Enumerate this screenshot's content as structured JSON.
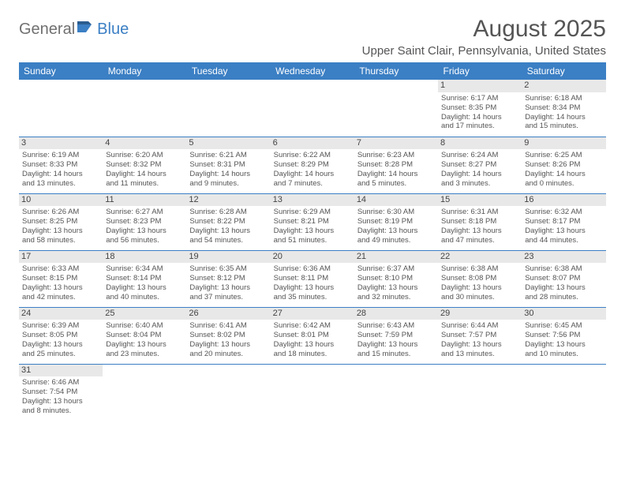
{
  "logo": {
    "part1": "General",
    "part2": "Blue"
  },
  "title": "August 2025",
  "location": "Upper Saint Clair, Pennsylvania, United States",
  "colors": {
    "header_bg": "#3b7fc4",
    "header_fg": "#ffffff",
    "daynum_bg": "#e8e8e8",
    "text": "#555555",
    "logo_gray": "#707070",
    "logo_blue": "#3b7fc4",
    "border": "#3b7fc4",
    "page_bg": "#ffffff"
  },
  "day_headers": [
    "Sunday",
    "Monday",
    "Tuesday",
    "Wednesday",
    "Thursday",
    "Friday",
    "Saturday"
  ],
  "weeks": [
    [
      null,
      null,
      null,
      null,
      null,
      {
        "n": "1",
        "sr": "Sunrise: 6:17 AM",
        "ss": "Sunset: 8:35 PM",
        "d1": "Daylight: 14 hours",
        "d2": "and 17 minutes."
      },
      {
        "n": "2",
        "sr": "Sunrise: 6:18 AM",
        "ss": "Sunset: 8:34 PM",
        "d1": "Daylight: 14 hours",
        "d2": "and 15 minutes."
      }
    ],
    [
      {
        "n": "3",
        "sr": "Sunrise: 6:19 AM",
        "ss": "Sunset: 8:33 PM",
        "d1": "Daylight: 14 hours",
        "d2": "and 13 minutes."
      },
      {
        "n": "4",
        "sr": "Sunrise: 6:20 AM",
        "ss": "Sunset: 8:32 PM",
        "d1": "Daylight: 14 hours",
        "d2": "and 11 minutes."
      },
      {
        "n": "5",
        "sr": "Sunrise: 6:21 AM",
        "ss": "Sunset: 8:31 PM",
        "d1": "Daylight: 14 hours",
        "d2": "and 9 minutes."
      },
      {
        "n": "6",
        "sr": "Sunrise: 6:22 AM",
        "ss": "Sunset: 8:29 PM",
        "d1": "Daylight: 14 hours",
        "d2": "and 7 minutes."
      },
      {
        "n": "7",
        "sr": "Sunrise: 6:23 AM",
        "ss": "Sunset: 8:28 PM",
        "d1": "Daylight: 14 hours",
        "d2": "and 5 minutes."
      },
      {
        "n": "8",
        "sr": "Sunrise: 6:24 AM",
        "ss": "Sunset: 8:27 PM",
        "d1": "Daylight: 14 hours",
        "d2": "and 3 minutes."
      },
      {
        "n": "9",
        "sr": "Sunrise: 6:25 AM",
        "ss": "Sunset: 8:26 PM",
        "d1": "Daylight: 14 hours",
        "d2": "and 0 minutes."
      }
    ],
    [
      {
        "n": "10",
        "sr": "Sunrise: 6:26 AM",
        "ss": "Sunset: 8:25 PM",
        "d1": "Daylight: 13 hours",
        "d2": "and 58 minutes."
      },
      {
        "n": "11",
        "sr": "Sunrise: 6:27 AM",
        "ss": "Sunset: 8:23 PM",
        "d1": "Daylight: 13 hours",
        "d2": "and 56 minutes."
      },
      {
        "n": "12",
        "sr": "Sunrise: 6:28 AM",
        "ss": "Sunset: 8:22 PM",
        "d1": "Daylight: 13 hours",
        "d2": "and 54 minutes."
      },
      {
        "n": "13",
        "sr": "Sunrise: 6:29 AM",
        "ss": "Sunset: 8:21 PM",
        "d1": "Daylight: 13 hours",
        "d2": "and 51 minutes."
      },
      {
        "n": "14",
        "sr": "Sunrise: 6:30 AM",
        "ss": "Sunset: 8:19 PM",
        "d1": "Daylight: 13 hours",
        "d2": "and 49 minutes."
      },
      {
        "n": "15",
        "sr": "Sunrise: 6:31 AM",
        "ss": "Sunset: 8:18 PM",
        "d1": "Daylight: 13 hours",
        "d2": "and 47 minutes."
      },
      {
        "n": "16",
        "sr": "Sunrise: 6:32 AM",
        "ss": "Sunset: 8:17 PM",
        "d1": "Daylight: 13 hours",
        "d2": "and 44 minutes."
      }
    ],
    [
      {
        "n": "17",
        "sr": "Sunrise: 6:33 AM",
        "ss": "Sunset: 8:15 PM",
        "d1": "Daylight: 13 hours",
        "d2": "and 42 minutes."
      },
      {
        "n": "18",
        "sr": "Sunrise: 6:34 AM",
        "ss": "Sunset: 8:14 PM",
        "d1": "Daylight: 13 hours",
        "d2": "and 40 minutes."
      },
      {
        "n": "19",
        "sr": "Sunrise: 6:35 AM",
        "ss": "Sunset: 8:12 PM",
        "d1": "Daylight: 13 hours",
        "d2": "and 37 minutes."
      },
      {
        "n": "20",
        "sr": "Sunrise: 6:36 AM",
        "ss": "Sunset: 8:11 PM",
        "d1": "Daylight: 13 hours",
        "d2": "and 35 minutes."
      },
      {
        "n": "21",
        "sr": "Sunrise: 6:37 AM",
        "ss": "Sunset: 8:10 PM",
        "d1": "Daylight: 13 hours",
        "d2": "and 32 minutes."
      },
      {
        "n": "22",
        "sr": "Sunrise: 6:38 AM",
        "ss": "Sunset: 8:08 PM",
        "d1": "Daylight: 13 hours",
        "d2": "and 30 minutes."
      },
      {
        "n": "23",
        "sr": "Sunrise: 6:38 AM",
        "ss": "Sunset: 8:07 PM",
        "d1": "Daylight: 13 hours",
        "d2": "and 28 minutes."
      }
    ],
    [
      {
        "n": "24",
        "sr": "Sunrise: 6:39 AM",
        "ss": "Sunset: 8:05 PM",
        "d1": "Daylight: 13 hours",
        "d2": "and 25 minutes."
      },
      {
        "n": "25",
        "sr": "Sunrise: 6:40 AM",
        "ss": "Sunset: 8:04 PM",
        "d1": "Daylight: 13 hours",
        "d2": "and 23 minutes."
      },
      {
        "n": "26",
        "sr": "Sunrise: 6:41 AM",
        "ss": "Sunset: 8:02 PM",
        "d1": "Daylight: 13 hours",
        "d2": "and 20 minutes."
      },
      {
        "n": "27",
        "sr": "Sunrise: 6:42 AM",
        "ss": "Sunset: 8:01 PM",
        "d1": "Daylight: 13 hours",
        "d2": "and 18 minutes."
      },
      {
        "n": "28",
        "sr": "Sunrise: 6:43 AM",
        "ss": "Sunset: 7:59 PM",
        "d1": "Daylight: 13 hours",
        "d2": "and 15 minutes."
      },
      {
        "n": "29",
        "sr": "Sunrise: 6:44 AM",
        "ss": "Sunset: 7:57 PM",
        "d1": "Daylight: 13 hours",
        "d2": "and 13 minutes."
      },
      {
        "n": "30",
        "sr": "Sunrise: 6:45 AM",
        "ss": "Sunset: 7:56 PM",
        "d1": "Daylight: 13 hours",
        "d2": "and 10 minutes."
      }
    ],
    [
      {
        "n": "31",
        "sr": "Sunrise: 6:46 AM",
        "ss": "Sunset: 7:54 PM",
        "d1": "Daylight: 13 hours",
        "d2": "and 8 minutes."
      },
      null,
      null,
      null,
      null,
      null,
      null
    ]
  ]
}
